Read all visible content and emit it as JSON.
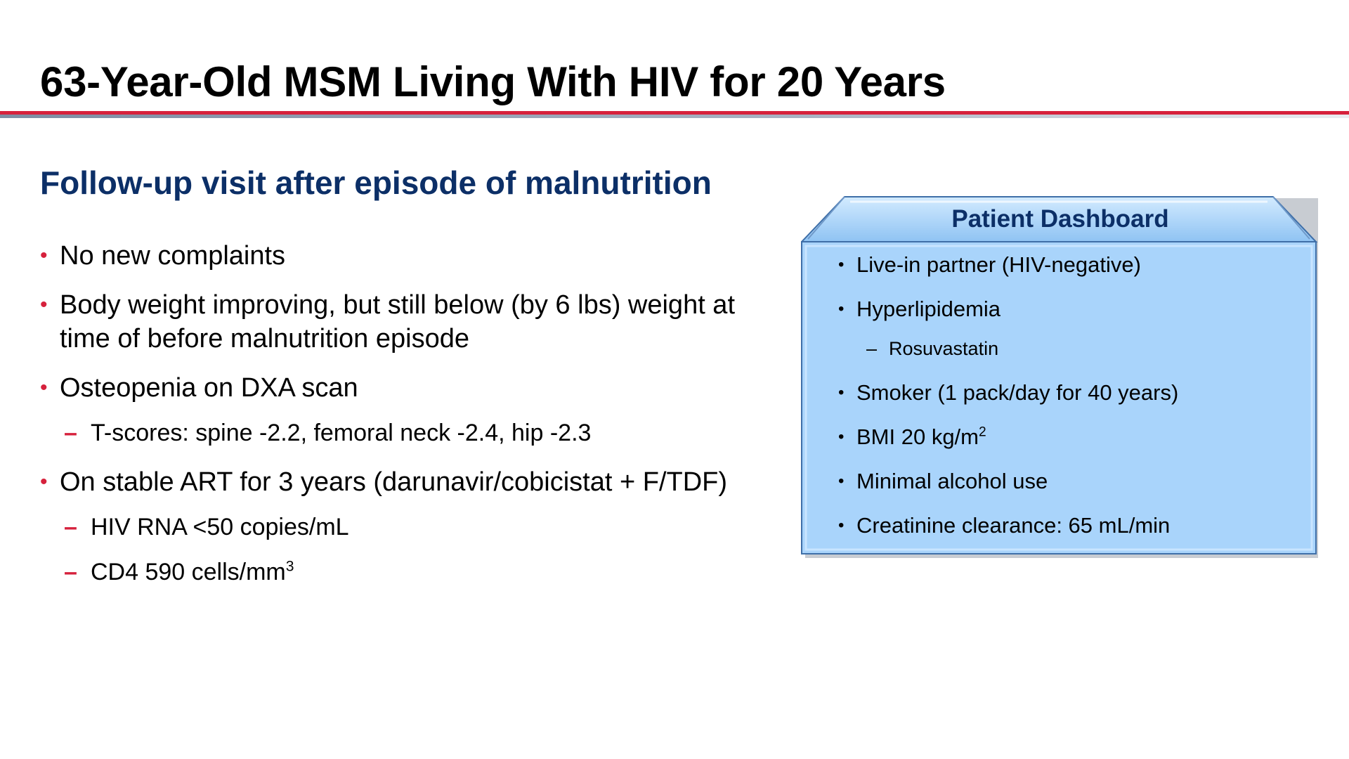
{
  "slide": {
    "title": "63-Year-Old MSM Living With HIV for 20 Years",
    "subtitle": "Follow-up visit after episode of malnutrition"
  },
  "bullets": [
    {
      "text": "No new complaints"
    },
    {
      "text": "Body weight improving, but still below (by 6 lbs) weight at time of before malnutrition episode"
    },
    {
      "text": "Osteopenia on DXA scan"
    },
    {
      "sub": "T-scores: spine -2.2, femoral neck -2.4, hip -2.3"
    },
    {
      "text": "On stable ART for 3 years (darunavir/cobicistat + F/TDF)"
    },
    {
      "sub": "HIV RNA <50 copies/mL"
    },
    {
      "sub": "CD4 590 cells/mm",
      "sup": "3"
    }
  ],
  "dashboard": {
    "title": "Patient Dashboard",
    "items": [
      {
        "text": "Live-in partner (HIV-negative)"
      },
      {
        "text": "Hyperlipidemia"
      },
      {
        "sub": "Rosuvastatin"
      },
      {
        "text": "Smoker (1 pack/day for 40 years)"
      },
      {
        "text": "BMI 20 kg/m",
        "sup": "2"
      },
      {
        "text": "Minimal alcohol use"
      },
      {
        "text": "Creatinine clearance: 65 mL/min"
      }
    ]
  },
  "colors": {
    "accent_red": "#d6213c",
    "heading_navy": "#0c2f67",
    "dashboard_fill": "#a9d4fb",
    "dashboard_border": "#3f6fa8"
  }
}
